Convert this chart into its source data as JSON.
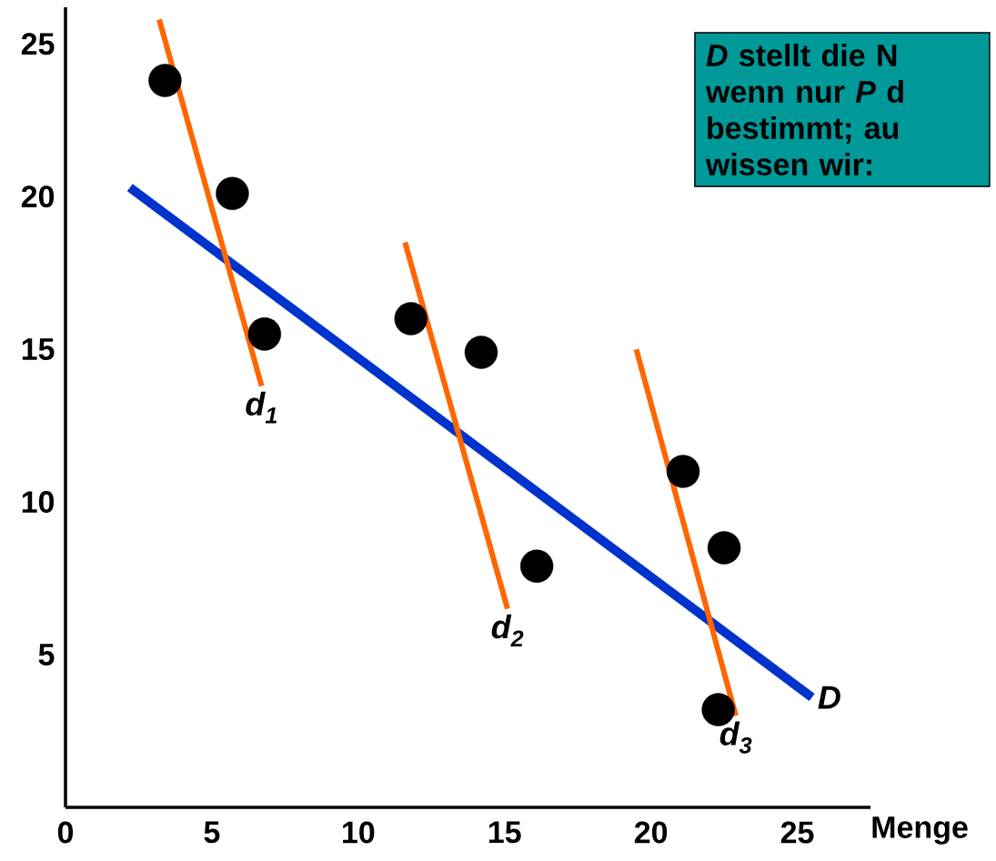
{
  "chart_data": {
    "type": "scatter",
    "xlabel": "Menge",
    "xlim": [
      0,
      27.5
    ],
    "ylim": [
      0,
      26.2
    ],
    "xticks": [
      0,
      5,
      10,
      15,
      20,
      25
    ],
    "yticks": [
      5,
      10,
      15,
      20,
      25
    ],
    "series": [
      {
        "color": "#000000",
        "x": [
          3.4,
          5.7,
          6.8,
          11.8,
          14.2,
          16.1,
          21.1,
          22.5,
          22.3
        ],
        "values": [
          23.8,
          20.1,
          15.5,
          16.0,
          14.9,
          7.9,
          11.0,
          8.5,
          3.2
        ]
      },
      {
        "type": "line",
        "name": "D",
        "color": "#0033cc",
        "x": [
          2.2,
          25.5
        ],
        "values": [
          20.3,
          3.6
        ]
      },
      {
        "type": "line",
        "name": "d$_{1}$",
        "color": "#ff6600",
        "x": [
          3.2,
          6.7
        ],
        "values": [
          25.8,
          13.8
        ]
      },
      {
        "type": "line",
        "name": "d$_{2}$",
        "color": "#ff6600",
        "x": [
          11.6,
          15.1
        ],
        "values": [
          18.5,
          6.5
        ]
      },
      {
        "type": "line",
        "name": "d$_{3}$",
        "color": "#ff6600",
        "x": [
          19.5,
          22.9
        ],
        "values": [
          15.0,
          3.0
        ]
      }
    ],
    "annotations": [
      "*D* stellt die N",
      "wenn nur *P* d",
      "bestimmt; au",
      "wissen wir:"
    ]
  }
}
